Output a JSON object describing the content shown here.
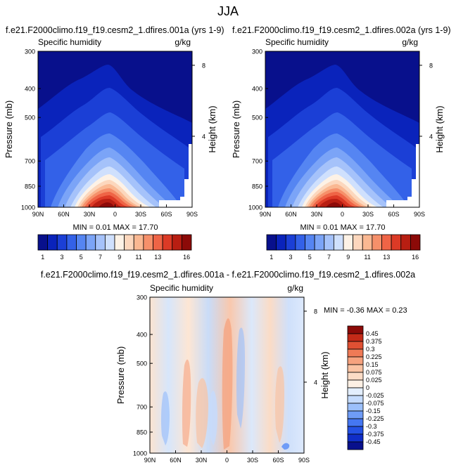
{
  "figure_title": "JJA",
  "colors": {
    "main_scale": [
      "#08108c",
      "#0a23bb",
      "#1b3fd6",
      "#3361e8",
      "#5585f2",
      "#7ba4f7",
      "#a5c2fa",
      "#cfe0fd",
      "#fdf2e6",
      "#fcd7bd",
      "#fab892",
      "#f6906a",
      "#ef6446",
      "#dc3a26",
      "#b81e12",
      "#8c0a08"
    ],
    "diff_scale": [
      "#08108c",
      "#102ec8",
      "#2451e4",
      "#4577f2",
      "#6f9cf7",
      "#9cc0fb",
      "#c5dbfd",
      "#e3eefd",
      "#fdf0e4",
      "#fcdcc6",
      "#fac3a3",
      "#f6a27e",
      "#ef7a56",
      "#e05033",
      "#c42a18",
      "#8c0a08"
    ]
  },
  "chart_data": [
    {
      "id": "panel-left",
      "type": "heatmap",
      "title": "f.e21.F2000climo.f19_f19.cesm2_1.dfires.001a (yrs 1-9)",
      "variable_label": "Specific humidity",
      "units_label": "g/kg",
      "ylabel": "Pressure (mb)",
      "y2label": "Height (km)",
      "x_ticks": [
        "90N",
        "60N",
        "30N",
        "0",
        "30S",
        "60S",
        "90S"
      ],
      "x_values": [
        90,
        60,
        30,
        0,
        -30,
        -60,
        -90
      ],
      "y_ticks": [
        "300",
        "400",
        "500",
        "700",
        "850",
        "1000"
      ],
      "y_values": [
        300,
        400,
        500,
        700,
        850,
        1000
      ],
      "y2_ticks": [
        "8",
        "4"
      ],
      "y2_values": [
        8,
        4
      ],
      "stats_label": "MIN =  0.01  MAX = 17.70",
      "min": 0.01,
      "max": 17.7,
      "colorbar_labels": [
        "1",
        "3",
        "5",
        "7",
        "9",
        "11",
        "13",
        "16"
      ],
      "colorbar_levels": [
        1,
        2,
        3,
        4,
        5,
        6,
        7,
        8,
        9,
        10,
        11,
        12,
        13,
        14,
        15,
        16
      ]
    },
    {
      "id": "panel-right",
      "type": "heatmap",
      "title": "f.e21.F2000climo.f19_f19.cesm2_1.dfires.002a (yrs 1-9)",
      "variable_label": "Specific humidity",
      "units_label": "g/kg",
      "ylabel": "Pressure (mb)",
      "y2label": "Height (km)",
      "x_ticks": [
        "90N",
        "60N",
        "30N",
        "0",
        "30S",
        "60S",
        "90S"
      ],
      "x_values": [
        90,
        60,
        30,
        0,
        -30,
        -60,
        -90
      ],
      "y_ticks": [
        "300",
        "400",
        "500",
        "700",
        "850",
        "1000"
      ],
      "y_values": [
        300,
        400,
        500,
        700,
        850,
        1000
      ],
      "y2_ticks": [
        "8",
        "4"
      ],
      "y2_values": [
        8,
        4
      ],
      "stats_label": "MIN =  0.01  MAX = 17.70",
      "min": 0.01,
      "max": 17.7,
      "colorbar_labels": [
        "1",
        "3",
        "5",
        "7",
        "9",
        "11",
        "13",
        "16"
      ],
      "colorbar_levels": [
        1,
        2,
        3,
        4,
        5,
        6,
        7,
        8,
        9,
        10,
        11,
        12,
        13,
        14,
        15,
        16
      ]
    },
    {
      "id": "panel-diff",
      "type": "heatmap",
      "title": "f.e21.F2000climo.f19_f19.cesm2_1.dfires.001a - f.e21.F2000climo.f19_f19.cesm2_1.dfires.002a",
      "variable_label": "Specific humidity",
      "units_label": "g/kg",
      "ylabel": "Pressure (mb)",
      "y2label": "Height (km)",
      "x_ticks": [
        "90N",
        "60N",
        "30N",
        "0",
        "30S",
        "60S",
        "90S"
      ],
      "x_values": [
        90,
        60,
        30,
        0,
        -30,
        -60,
        -90
      ],
      "y_ticks": [
        "300",
        "400",
        "500",
        "700",
        "850",
        "1000"
      ],
      "y_values": [
        300,
        400,
        500,
        700,
        850,
        1000
      ],
      "y2_ticks": [
        "8",
        "4"
      ],
      "y2_values": [
        8,
        4
      ],
      "stats_label": "MIN = -0.36  MAX =  0.23",
      "min": -0.36,
      "max": 0.23,
      "colorbar_labels": [
        "0.45",
        "0.375",
        "0.3",
        "0.225",
        "0.15",
        "0.075",
        "0.025",
        "0",
        "-0.025",
        "-0.075",
        "-0.15",
        "-0.225",
        "-0.3",
        "-0.375",
        "-0.45"
      ],
      "colorbar_levels": [
        0.45,
        0.375,
        0.3,
        0.225,
        0.15,
        0.075,
        0.025,
        0,
        -0.025,
        -0.075,
        -0.15,
        -0.225,
        -0.3,
        -0.375,
        -0.45
      ]
    }
  ]
}
